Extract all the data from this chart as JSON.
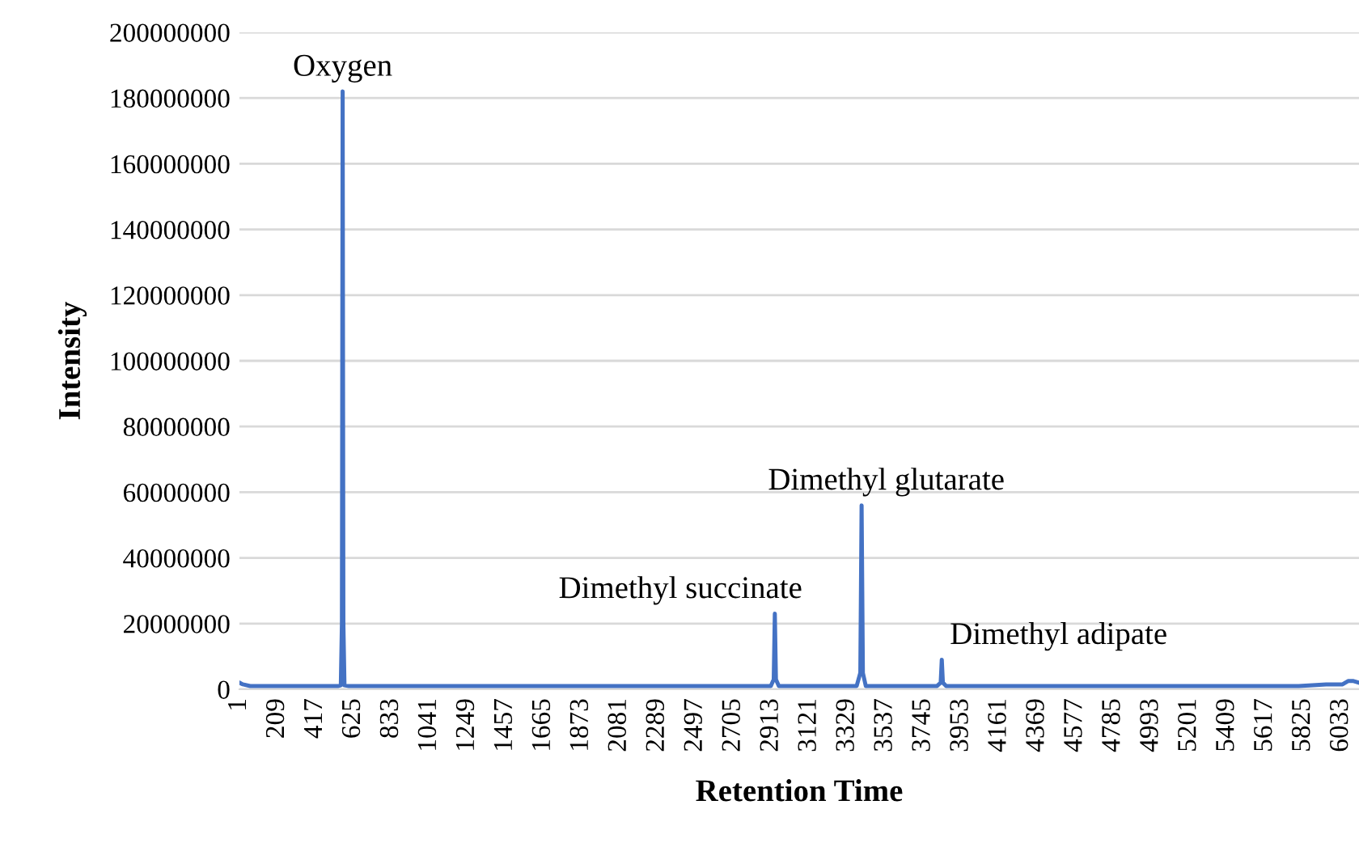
{
  "chart_data": {
    "type": "line",
    "xlabel": "Retention Time",
    "ylabel": "Intensity",
    "x": [
      1,
      20,
      60,
      200,
      400,
      540,
      556,
      562,
      566,
      570,
      576,
      600,
      800,
      1200,
      1600,
      2000,
      2400,
      2800,
      2910,
      2926,
      2932,
      2938,
      2954,
      3100,
      3380,
      3400,
      3407,
      3414,
      3430,
      3600,
      3820,
      3840,
      3846,
      3852,
      3870,
      4200,
      4600,
      5000,
      5400,
      5800,
      5950,
      6000,
      6040,
      6070,
      6100,
      6130
    ],
    "series": [
      {
        "color": "#4472c4",
        "values": [
          2000000,
          1500000,
          1000000,
          1000000,
          1000000,
          1000000,
          1200000,
          20000000,
          182000000,
          20000000,
          1200000,
          1000000,
          1000000,
          1000000,
          1000000,
          1000000,
          1000000,
          1000000,
          1000000,
          3000000,
          23000000,
          3000000,
          1000000,
          1000000,
          1000000,
          5000000,
          56000000,
          5000000,
          1000000,
          1000000,
          1000000,
          2000000,
          9000000,
          2000000,
          1000000,
          1000000,
          1000000,
          1000000,
          1000000,
          1000000,
          1500000,
          1500000,
          1500000,
          2500000,
          2500000,
          2000000
        ]
      }
    ],
    "xlim": [
      1,
      6130
    ],
    "xticks": [
      1,
      209,
      417,
      625,
      833,
      1041,
      1249,
      1457,
      1665,
      1873,
      2081,
      2289,
      2497,
      2705,
      2913,
      3121,
      3329,
      3537,
      3745,
      3953,
      4161,
      4369,
      4577,
      4785,
      4993,
      5201,
      5409,
      5617,
      5825,
      6033
    ],
    "ylim": [
      0,
      200000000
    ],
    "yticks": [
      0,
      20000000,
      40000000,
      60000000,
      80000000,
      100000000,
      120000000,
      140000000,
      160000000,
      180000000,
      200000000
    ],
    "grid": "y",
    "marker": "none",
    "line_style": "solid",
    "annotations": [
      {
        "text": "Oxygen",
        "x": 566,
        "y": 182000000
      },
      {
        "text": "Dimethyl succinate",
        "x": 2932,
        "y": 23000000
      },
      {
        "text": "Dimethyl glutarate",
        "x": 3407,
        "y": 56000000
      },
      {
        "text": "Dimethyl adipate",
        "x": 3846,
        "y": 9000000
      }
    ]
  }
}
